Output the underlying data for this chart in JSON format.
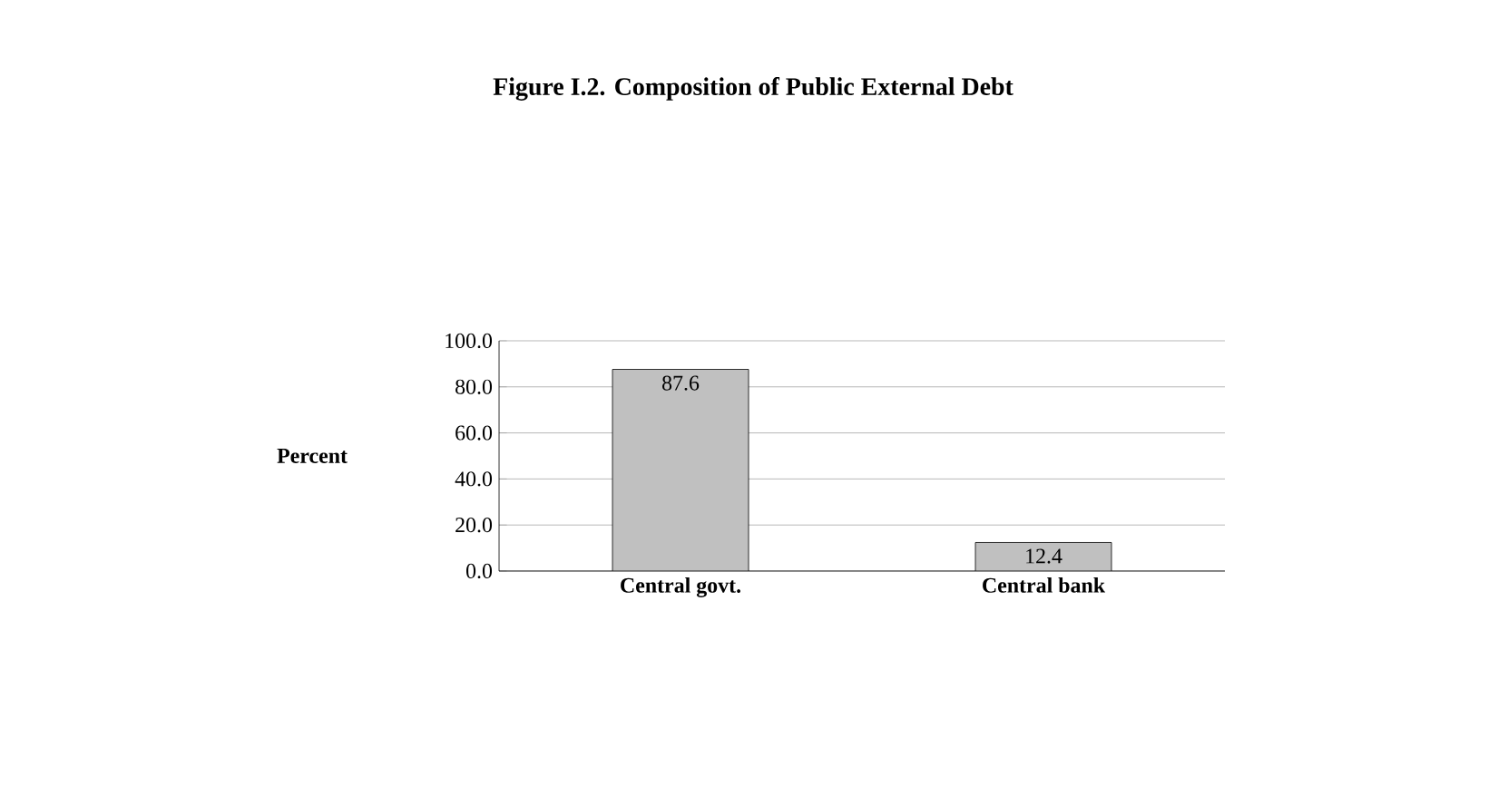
{
  "chart_data": {
    "type": "bar",
    "title": "Figure I.2. Composition of Public External Debt",
    "ylabel": "Percent",
    "categories": [
      "Central govt.",
      "Central bank"
    ],
    "values": [
      87.6,
      12.4
    ],
    "color": "#c0c0c0",
    "ylim": [
      0,
      100
    ],
    "yticks": [
      {
        "value": 0,
        "label": "0.0"
      },
      {
        "value": 20,
        "label": "20.0"
      },
      {
        "value": 40,
        "label": "40.0"
      },
      {
        "value": 60,
        "label": "60.0"
      },
      {
        "value": 80,
        "label": "80.0"
      },
      {
        "value": 100,
        "label": "100.0"
      }
    ],
    "grid": "y",
    "data_labels": true
  }
}
